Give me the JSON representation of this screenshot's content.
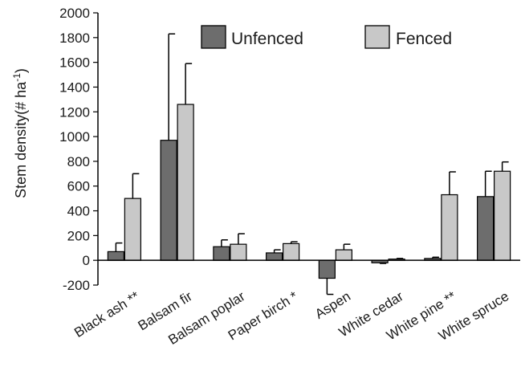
{
  "chart_data": {
    "type": "bar",
    "title": "",
    "xlabel": "",
    "ylabel": "Stem density(# ha",
    "ylabel_sup": "-1",
    "ylabel_close": ")",
    "ylim": [
      -200,
      2000
    ],
    "yticks": [
      -200,
      0,
      200,
      400,
      600,
      800,
      1000,
      1200,
      1400,
      1600,
      1800,
      2000
    ],
    "grid": false,
    "legend_position": "top-right",
    "categories": [
      "Black ash **",
      "Balsam fir",
      "Balsam poplar",
      "Paper birch *",
      "Aspen",
      "White cedar",
      "White pine **",
      "White spruce"
    ],
    "series": [
      {
        "name": "Unfenced",
        "color": "#6d6d6d",
        "values": [
          70,
          970,
          110,
          60,
          -145,
          -20,
          15,
          515
        ],
        "error": [
          70,
          860,
          55,
          25,
          130,
          5,
          10,
          205
        ]
      },
      {
        "name": "Fenced",
        "color": "#c8c8c8",
        "values": [
          500,
          1260,
          130,
          135,
          85,
          10,
          530,
          720
        ],
        "error": [
          200,
          330,
          85,
          15,
          45,
          5,
          185,
          75
        ]
      }
    ]
  }
}
